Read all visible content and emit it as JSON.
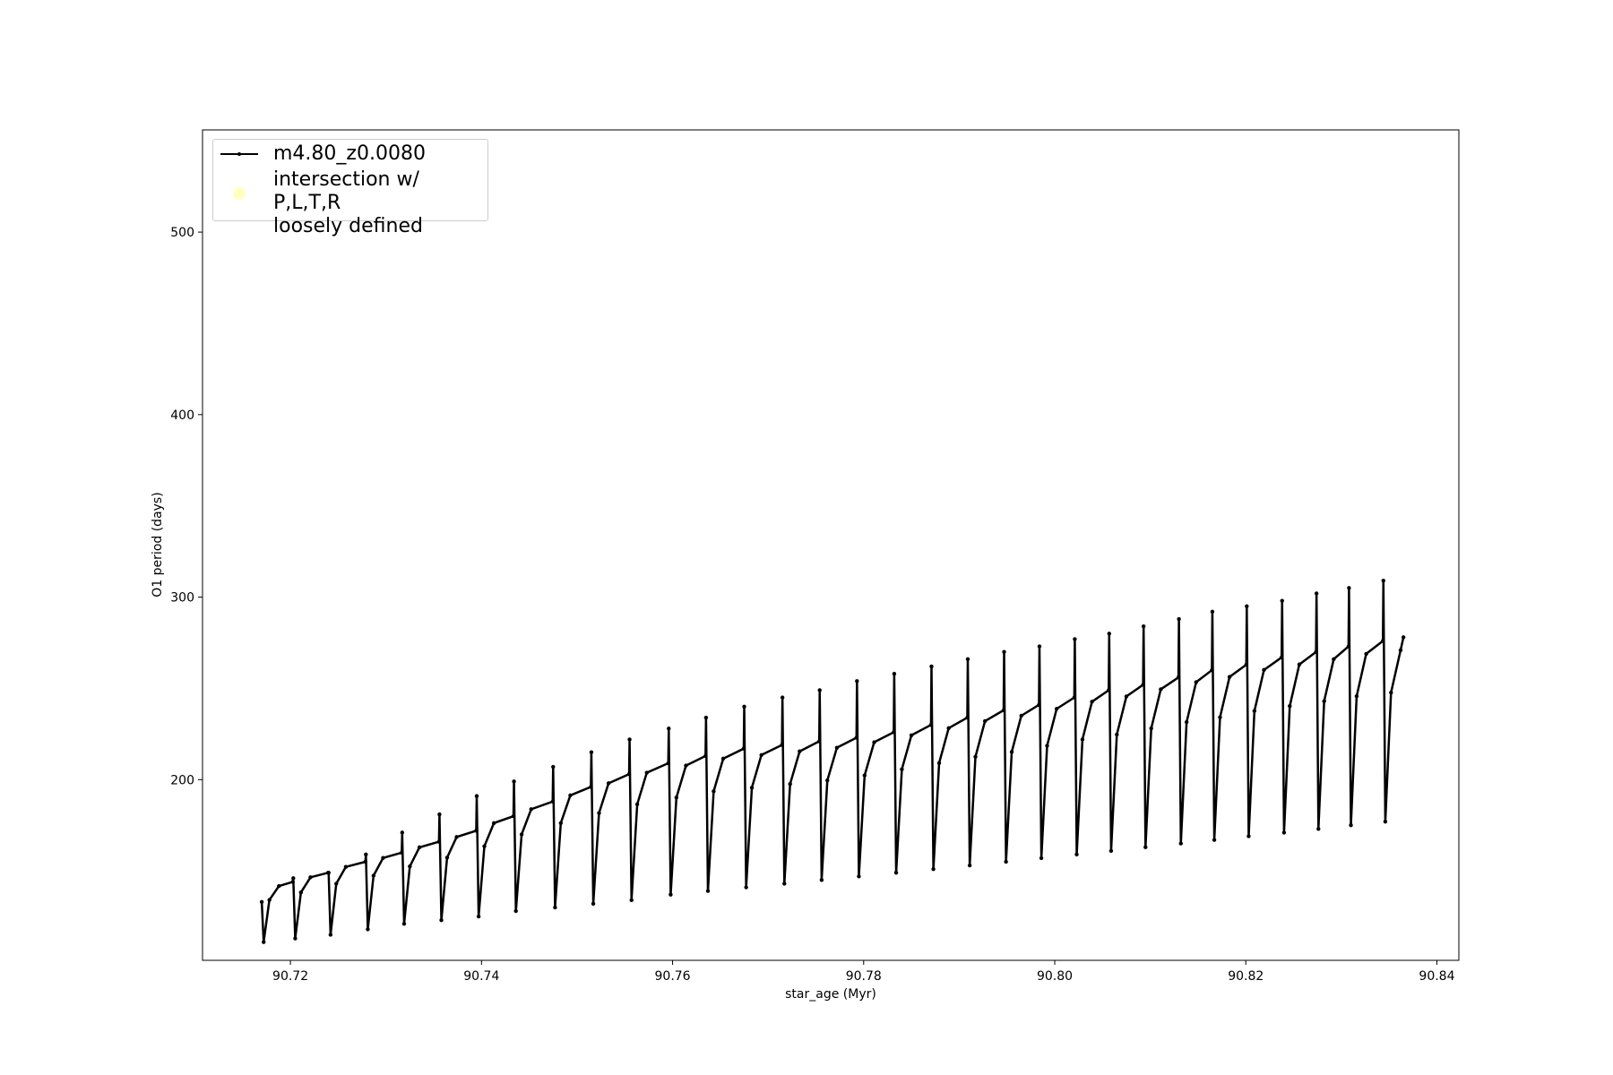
{
  "chart_data": {
    "type": "line",
    "xlabel": "star_age (Myr)",
    "ylabel": "O1 period (days)",
    "xlim": [
      90.7108,
      90.8423
    ],
    "ylim": [
      101,
      556
    ],
    "xticks": [
      90.72,
      90.74,
      90.76,
      90.78,
      {
        "value": 90.8,
        "label": "90.80"
      },
      90.82,
      90.84
    ],
    "yticks": [
      200,
      300,
      400,
      500
    ],
    "legend": "upper left",
    "series": [
      {
        "name": "m4.80_z0.0080",
        "color": "#000000",
        "x": [
          90.717,
          90.7172,
          90.7178,
          90.7188,
          90.72025,
          90.7203,
          90.7205,
          90.7211,
          90.7221,
          90.72395,
          90.724,
          90.7242,
          90.7248,
          90.7258,
          90.72785,
          90.7279,
          90.7281,
          90.7287,
          90.7297,
          90.73165,
          90.7317,
          90.7319,
          90.7325,
          90.7335,
          90.73555,
          90.7356,
          90.7358,
          90.7364,
          90.7374,
          90.73945,
          90.7395,
          90.7397,
          90.7403,
          90.7413,
          90.74335,
          90.7434,
          90.7436,
          90.7442,
          90.7452,
          90.74745,
          90.7475,
          90.7477,
          90.7483,
          90.7493,
          90.75145,
          90.7515,
          90.7517,
          90.7523,
          90.7533,
          90.75545,
          90.7555,
          90.7557,
          90.7563,
          90.7573,
          90.75955,
          90.7596,
          90.7598,
          90.7604,
          90.7614,
          90.76345,
          90.7635,
          90.7637,
          90.7643,
          90.7653,
          90.76745,
          90.7675,
          90.7677,
          90.7683,
          90.7693,
          90.77145,
          90.7715,
          90.7717,
          90.7723,
          90.7733,
          90.77535,
          90.7754,
          90.7756,
          90.7762,
          90.7772,
          90.77925,
          90.7793,
          90.7795,
          90.7801,
          90.7811,
          90.78315,
          90.7832,
          90.7834,
          90.784,
          90.785,
          90.78705,
          90.7871,
          90.7873,
          90.7879,
          90.7889,
          90.79085,
          90.7909,
          90.7911,
          90.7917,
          90.7927,
          90.79465,
          90.7947,
          90.7949,
          90.7955,
          90.7965,
          90.79835,
          90.7984,
          90.7986,
          90.7992,
          90.8002,
          90.80205,
          90.8021,
          90.8023,
          90.8029,
          90.8039,
          90.80565,
          90.8057,
          90.8059,
          90.8065,
          90.8075,
          90.80925,
          90.8093,
          90.8095,
          90.8101,
          90.8111,
          90.81295,
          90.813,
          90.8132,
          90.8138,
          90.8148,
          90.81645,
          90.8165,
          90.8167,
          90.8173,
          90.8183,
          90.82005,
          90.8201,
          90.8203,
          90.8209,
          90.8219,
          90.82375,
          90.8238,
          90.824,
          90.8246,
          90.8256,
          90.82735,
          90.8274,
          90.8276,
          90.8282,
          90.8292,
          90.83075,
          90.8308,
          90.831,
          90.8316,
          90.8326,
          90.83435,
          90.8344,
          90.8346,
          90.8352,
          90.8362,
          90.8365
        ],
        "values": [
          133,
          111,
          134.1,
          141.7,
          144,
          146,
          113,
          138.2,
          146.5,
          149,
          149,
          115,
          143,
          152.2,
          155,
          159,
          118,
          147.4,
          157.1,
          160,
          171,
          121,
          152.5,
          162.9,
          166,
          181,
          123,
          157.3,
          168.6,
          172,
          191,
          125,
          163.5,
          176.2,
          180,
          199,
          128,
          170,
          183.8,
          188,
          207,
          130,
          176.2,
          191.4,
          196,
          215,
          132,
          181.7,
          198,
          203,
          222,
          134,
          186.5,
          203.8,
          209,
          228,
          137,
          190.2,
          207.7,
          213,
          234,
          139,
          193.6,
          211.5,
          217,
          240,
          141,
          195.6,
          213.5,
          219,
          245,
          143,
          197.6,
          215.5,
          221,
          249,
          145,
          199.6,
          217.5,
          223,
          254,
          147,
          202.3,
          220.5,
          226,
          258,
          149,
          205.7,
          224.3,
          230,
          262,
          151,
          209.1,
          228.2,
          234,
          266,
          153,
          212.5,
          232.1,
          238,
          270,
          155,
          215.2,
          235,
          241,
          273,
          157,
          218.6,
          238.8,
          245,
          277,
          159,
          222,
          242.7,
          249,
          280,
          161,
          224.7,
          245.6,
          252,
          284,
          163,
          228.1,
          249.5,
          256,
          288,
          165,
          231.5,
          253.4,
          260,
          292,
          167,
          234.2,
          256.3,
          263,
          295,
          169,
          237.6,
          260.1,
          267,
          298,
          171,
          240.3,
          263.1,
          270,
          302,
          173,
          243,
          266,
          273,
          305,
          175,
          245.7,
          268.9,
          276,
          309,
          177,
          247.7,
          270.9,
          278
        ]
      },
      {
        "name": "intersection w/ P,L,T,R\nloosely defined",
        "color": "#ffffb3",
        "x": [],
        "values": []
      }
    ]
  }
}
